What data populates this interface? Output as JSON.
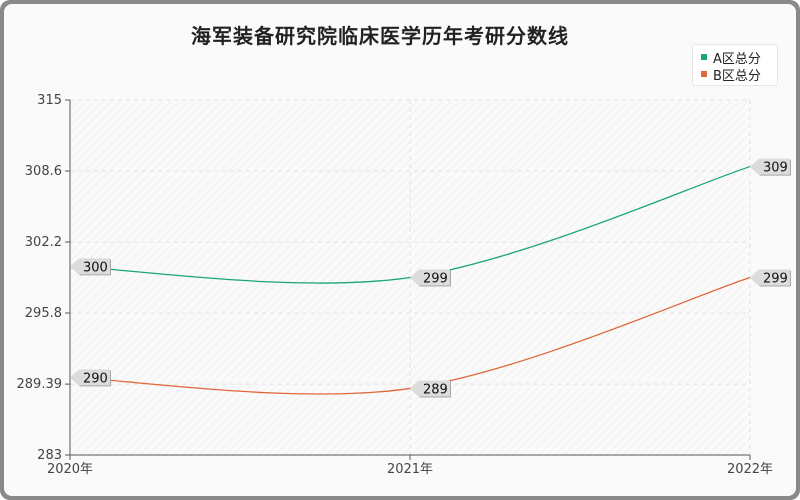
{
  "chart_data": {
    "type": "line",
    "title": "海军装备研究院临床医学历年考研分数线",
    "xlabel": "",
    "ylabel": "",
    "x": [
      "2020年",
      "2021年",
      "2022年"
    ],
    "yticks": [
      "315",
      "308.6",
      "302.2",
      "295.8",
      "289.39",
      "283"
    ],
    "ylim": [
      283,
      315
    ],
    "grid": true,
    "legend": "top-right",
    "series": [
      {
        "name": "A区总分",
        "values": [
          300,
          299,
          309
        ],
        "labels": [
          "300",
          "299",
          "309"
        ],
        "color": "#1aa57a"
      },
      {
        "name": "B区总分",
        "values": [
          290,
          289,
          299
        ],
        "labels": [
          "290",
          "289",
          "299"
        ],
        "color": "#e0673a"
      }
    ]
  }
}
